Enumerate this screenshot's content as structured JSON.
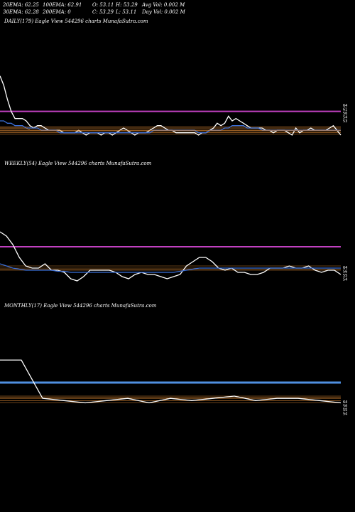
{
  "header": {
    "ema20": "20EMA: 62.25",
    "ema100": "100EMA: 62.91",
    "open": "O: 53.11",
    "high": "H: 53.29",
    "avg_vol": "Avg Vol: 0.002  M",
    "ema30": "30EMA: 62.28",
    "ema200": "200EMA: 0",
    "close": "C: 53.29",
    "low": "L: 53.11",
    "day_vol": "Day Vol: 0.002  M"
  },
  "colors": {
    "background": "#000000",
    "price": "#ffffff",
    "ema_blue": "#3b6fd8",
    "magenta_level": "#c040c0",
    "support_lines": "#d08030",
    "monthly_level": "#4f8fe0"
  },
  "chart_data": [
    {
      "type": "line",
      "title": "DAILY(179) Eagle  View  544296  charts MunafaSutra.com",
      "right_tick_labels": [
        "64",
        "61",
        "56",
        "54",
        "53"
      ],
      "series": [
        {
          "values": [
            78,
            74,
            68,
            63,
            60,
            60,
            60,
            59,
            57,
            56,
            57,
            57,
            56,
            55,
            55,
            55,
            55,
            54,
            54,
            54,
            54,
            55,
            54,
            53,
            54,
            54,
            54,
            53,
            54,
            54,
            53,
            54,
            55,
            56,
            55,
            54,
            53,
            54,
            54,
            54,
            55,
            56,
            57,
            57,
            56,
            55,
            55,
            54,
            54,
            54,
            54,
            54,
            54,
            53,
            54,
            54,
            55,
            56,
            58,
            57,
            58,
            61,
            59,
            60,
            59,
            58,
            57,
            56,
            56,
            56,
            56,
            55,
            55,
            54,
            55,
            55,
            55,
            54,
            53,
            56,
            54,
            55,
            55,
            56,
            55,
            55,
            55,
            55,
            56,
            57,
            55,
            53
          ]
        },
        {
          "values": [
            59,
            59,
            58,
            58,
            57,
            57,
            57,
            56,
            56,
            56,
            56,
            55,
            55,
            55,
            55,
            55,
            54,
            54,
            54,
            54,
            54,
            54,
            54,
            54,
            54,
            54,
            54,
            54,
            54,
            54,
            54,
            54,
            54,
            54,
            54,
            54,
            54,
            54,
            54,
            54,
            54,
            55,
            55,
            55,
            55,
            55,
            55,
            55,
            55,
            55,
            55,
            55,
            55,
            54,
            54,
            54,
            55,
            55,
            55,
            55,
            56,
            56,
            57,
            57,
            57,
            57,
            56,
            56,
            56,
            56,
            55,
            55,
            55,
            55,
            55,
            55,
            55,
            55,
            55,
            55,
            55,
            55,
            55,
            55,
            55,
            55,
            55,
            55,
            55,
            55,
            55,
            55
          ]
        },
        {
          "values": [
            56,
            56,
            56,
            56,
            56,
            56,
            56,
            56,
            55,
            55,
            55,
            55,
            55,
            55,
            55,
            55,
            55,
            55,
            55,
            55,
            55,
            55,
            55,
            55,
            55,
            55,
            55,
            55,
            55,
            55,
            55,
            55,
            55,
            55,
            55,
            55,
            55,
            55,
            55,
            55,
            55,
            55,
            55,
            55,
            55,
            55,
            55,
            55,
            55,
            55,
            55,
            55,
            55,
            55,
            55,
            55,
            55,
            55,
            55,
            55,
            55,
            55,
            55,
            55,
            55,
            55,
            55,
            55,
            55,
            55,
            55,
            55,
            55,
            55,
            55,
            55,
            55,
            55,
            55,
            55,
            55,
            55,
            55,
            55,
            55,
            55,
            55,
            55,
            55,
            55,
            55,
            55
          ]
        }
      ],
      "levels": [
        63,
        56.5,
        56,
        55.5,
        55,
        54.5,
        54,
        53.5
      ],
      "ylim": [
        50,
        80
      ]
    },
    {
      "type": "line",
      "title": "WEEKLY(54) Eagle  View  544296  charts MunafaSutra.com",
      "right_tick_labels": [
        "64",
        "56",
        "55",
        "54"
      ],
      "series": [
        {
          "values": [
            78,
            76,
            72,
            66,
            62,
            61,
            61,
            63,
            60,
            60,
            59,
            56,
            55,
            57,
            60,
            60,
            60,
            60,
            59,
            57,
            56,
            58,
            59,
            58,
            58,
            57,
            56,
            57,
            58,
            62,
            64,
            66,
            66,
            64,
            61,
            60,
            61,
            59,
            59,
            58,
            58,
            59,
            61,
            61,
            61,
            62,
            61,
            61,
            62,
            60,
            59,
            60,
            60,
            58
          ]
        },
        {
          "values": [
            63,
            62,
            61,
            60.5,
            60,
            60,
            60,
            60,
            60,
            59.5,
            59.5,
            59,
            59,
            59,
            59,
            59,
            59,
            59,
            59,
            59,
            59,
            59,
            59,
            59,
            59,
            59,
            59,
            59,
            59.5,
            60,
            60.5,
            61,
            61,
            61,
            61,
            61,
            61,
            61,
            61,
            61,
            61,
            61,
            61,
            61,
            61,
            61,
            61,
            61,
            61,
            61,
            61,
            61,
            61,
            61
          ]
        }
      ],
      "levels": [
        71,
        62,
        61,
        60.5,
        60
      ],
      "ylim": [
        50,
        80
      ]
    },
    {
      "type": "line",
      "title": "MONTHLY(17) Eagle  View  544296  charts MunafaSutra.com",
      "right_tick_labels": [
        "64",
        "56",
        "55",
        "54"
      ],
      "series": [
        {
          "values": [
            78,
            78,
            61,
            60,
            59,
            60,
            61,
            59,
            61,
            60,
            61,
            62,
            60,
            61,
            61,
            60,
            59
          ]
        }
      ],
      "levels": [
        68,
        62,
        61.5,
        61,
        60,
        59
      ],
      "ylim": [
        50,
        80
      ]
    }
  ]
}
